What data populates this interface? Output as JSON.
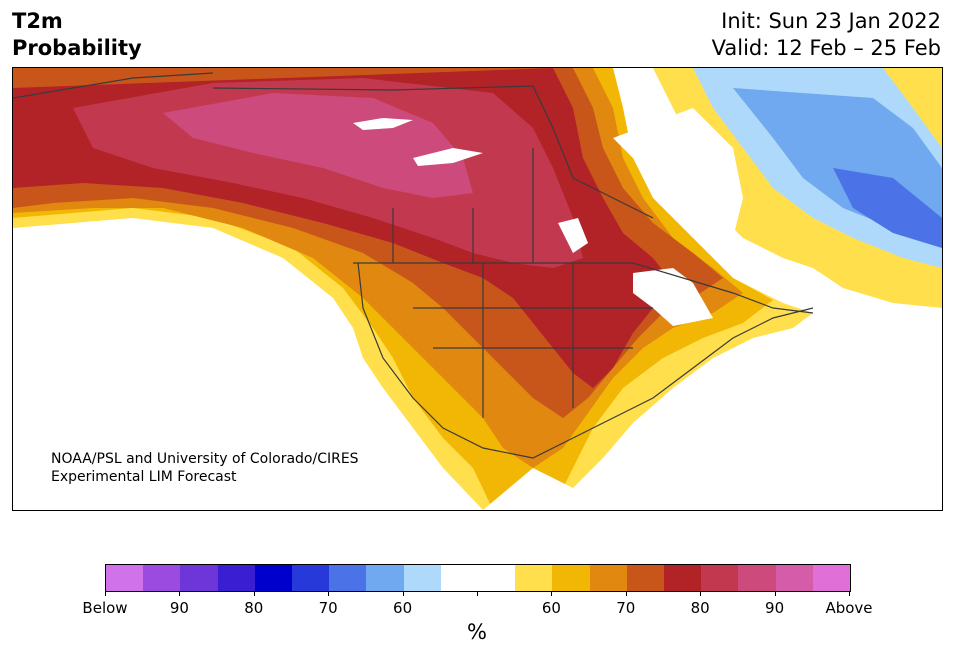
{
  "header": {
    "title_line1": "T2m",
    "title_line2": "Probability",
    "init": "Init: Sun 23 Jan 2022",
    "valid": "Valid: 12 Feb – 25 Feb"
  },
  "map": {
    "credit_line1": "NOAA/PSL and University of Colorado/CIRES",
    "credit_line2": "Experimental LIM Forecast"
  },
  "colorbar": {
    "colors": [
      "#d073ea",
      "#9b4be0",
      "#6e35d8",
      "#3a1fd2",
      "#0000cc",
      "#2839d9",
      "#4b72e6",
      "#70a9ef",
      "#aed9fa",
      "#ffffff",
      "#ffffff",
      "#ffe04c",
      "#f2b705",
      "#e0880f",
      "#c8561a",
      "#b22328",
      "#c2394f",
      "#cc4a7c",
      "#d45ca8",
      "#e070d8"
    ],
    "labels": [
      "Below",
      "90",
      "80",
      "70",
      "60",
      "",
      "60",
      "70",
      "80",
      "90",
      "Above"
    ],
    "unit": "%"
  }
}
